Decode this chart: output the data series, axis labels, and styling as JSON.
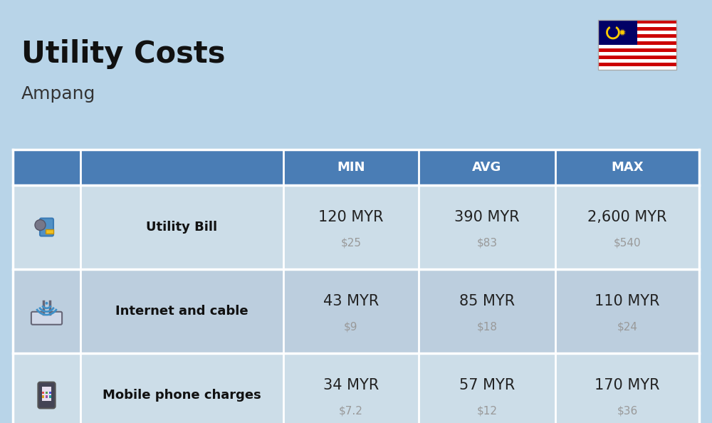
{
  "title": "Utility Costs",
  "subtitle": "Ampang",
  "background_color": "#b8d4e8",
  "header_bg_color": "#4a7db5",
  "header_text_color": "#ffffff",
  "row_bg_color_even": "#ccdde8",
  "row_bg_color_odd": "#bccede",
  "separator_color": "#ffffff",
  "table_headers": [
    "MIN",
    "AVG",
    "MAX"
  ],
  "rows": [
    {
      "label": "Utility Bill",
      "min_myr": "120 MYR",
      "min_usd": "$25",
      "avg_myr": "390 MYR",
      "avg_usd": "$83",
      "max_myr": "2,600 MYR",
      "max_usd": "$540"
    },
    {
      "label": "Internet and cable",
      "min_myr": "43 MYR",
      "min_usd": "$9",
      "avg_myr": "85 MYR",
      "avg_usd": "$18",
      "max_myr": "110 MYR",
      "max_usd": "$24"
    },
    {
      "label": "Mobile phone charges",
      "min_myr": "34 MYR",
      "min_usd": "$7.2",
      "avg_myr": "57 MYR",
      "avg_usd": "$12",
      "max_myr": "170 MYR",
      "max_usd": "$36"
    }
  ],
  "title_fontsize": 30,
  "subtitle_fontsize": 18,
  "header_fontsize": 13,
  "label_fontsize": 13,
  "value_fontsize": 15,
  "usd_fontsize": 11,
  "usd_color": "#999999",
  "label_color": "#111111",
  "value_color": "#222222",
  "title_color": "#111111",
  "subtitle_color": "#333333"
}
